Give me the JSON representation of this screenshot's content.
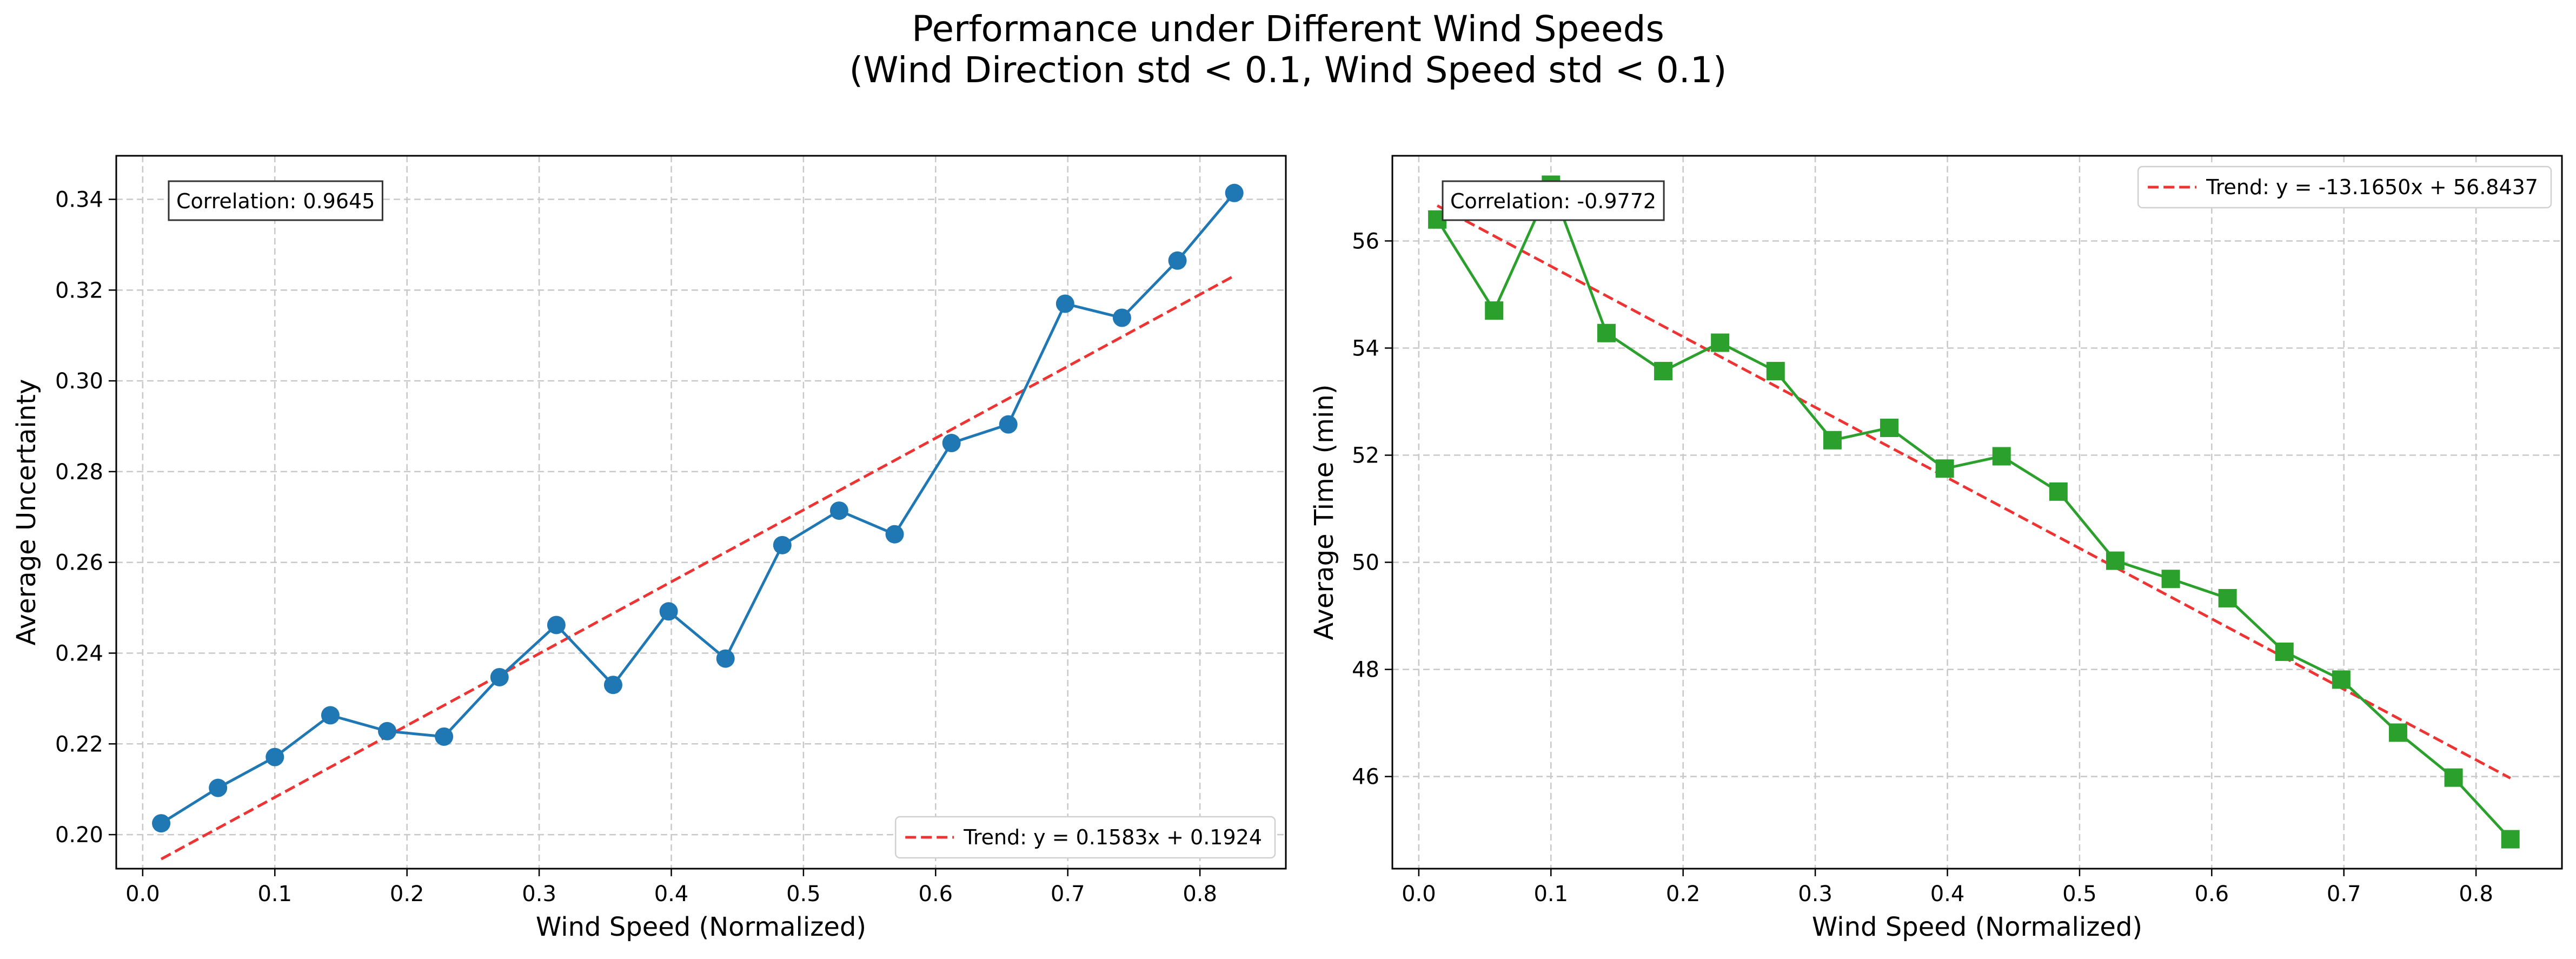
{
  "figure": {
    "title_line1": "Performance under Different Wind Speeds",
    "title_line2": "(Wind Direction std < 0.1, Wind Speed std < 0.1)"
  },
  "chart_data": [
    {
      "type": "line",
      "xlabel": "Wind Speed (Normalized)",
      "ylabel": "Average Uncertainty",
      "xlim": [
        -0.02,
        0.865
      ],
      "ylim": [
        0.1925,
        0.3496
      ],
      "xticks": [
        0.0,
        0.1,
        0.2,
        0.3,
        0.4,
        0.5,
        0.6,
        0.7,
        0.8
      ],
      "xtick_labels": [
        "0.0",
        "0.1",
        "0.2",
        "0.3",
        "0.4",
        "0.5",
        "0.6",
        "0.7",
        "0.8"
      ],
      "yticks": [
        0.2,
        0.22,
        0.24,
        0.26,
        0.28,
        0.3,
        0.32,
        0.34
      ],
      "ytick_labels": [
        "0.20",
        "0.22",
        "0.24",
        "0.26",
        "0.28",
        "0.30",
        "0.32",
        "0.34"
      ],
      "grid": true,
      "series": [
        {
          "color": "#1f77b4",
          "marker": "circle",
          "x": [
            0.014,
            0.057,
            0.1,
            0.142,
            0.185,
            0.228,
            0.27,
            0.313,
            0.356,
            0.398,
            0.441,
            0.484,
            0.527,
            0.569,
            0.612,
            0.655,
            0.698,
            0.741,
            0.783,
            0.826
          ],
          "y": [
            0.2025,
            0.2103,
            0.2171,
            0.2263,
            0.2228,
            0.2216,
            0.2347,
            0.2462,
            0.233,
            0.2492,
            0.2388,
            0.2638,
            0.2714,
            0.2662,
            0.2863,
            0.2904,
            0.317,
            0.3139,
            0.3265,
            0.3414
          ]
        }
      ],
      "trend": {
        "label": "Trend: y = 0.1583x + 0.1924",
        "slope": 0.1583,
        "intercept": 0.1924,
        "color": "#ee3333"
      },
      "correlation_label": "Correlation: 0.9645",
      "legend_position": "lower-right"
    },
    {
      "type": "line",
      "xlabel": "Wind Speed (Normalized)",
      "ylabel": "Average Time (min)",
      "xlim": [
        -0.02,
        0.865
      ],
      "ylim": [
        44.28,
        57.59
      ],
      "xticks": [
        0.0,
        0.1,
        0.2,
        0.3,
        0.4,
        0.5,
        0.6,
        0.7,
        0.8
      ],
      "xtick_labels": [
        "0.0",
        "0.1",
        "0.2",
        "0.3",
        "0.4",
        "0.5",
        "0.6",
        "0.7",
        "0.8"
      ],
      "yticks": [
        46,
        48,
        50,
        52,
        54,
        56
      ],
      "ytick_labels": [
        "46",
        "48",
        "50",
        "52",
        "54",
        "56"
      ],
      "grid": true,
      "series": [
        {
          "color": "#2ca02c",
          "marker": "square",
          "x": [
            0.014,
            0.057,
            0.1,
            0.142,
            0.185,
            0.228,
            0.27,
            0.313,
            0.356,
            0.398,
            0.441,
            0.484,
            0.527,
            0.569,
            0.612,
            0.655,
            0.698,
            0.741,
            0.783,
            0.826
          ],
          "y": [
            56.4,
            54.7,
            57.05,
            54.28,
            53.57,
            54.1,
            53.57,
            52.28,
            52.51,
            51.75,
            51.98,
            51.32,
            50.03,
            49.69,
            49.33,
            48.33,
            47.81,
            46.82,
            45.98,
            44.83
          ]
        }
      ],
      "trend": {
        "label": "Trend: y = -13.1650x + 56.8437",
        "slope": -13.165,
        "intercept": 56.8437,
        "color": "#ee3333"
      },
      "correlation_label": "Correlation: -0.9772",
      "legend_position": "upper-right"
    }
  ]
}
